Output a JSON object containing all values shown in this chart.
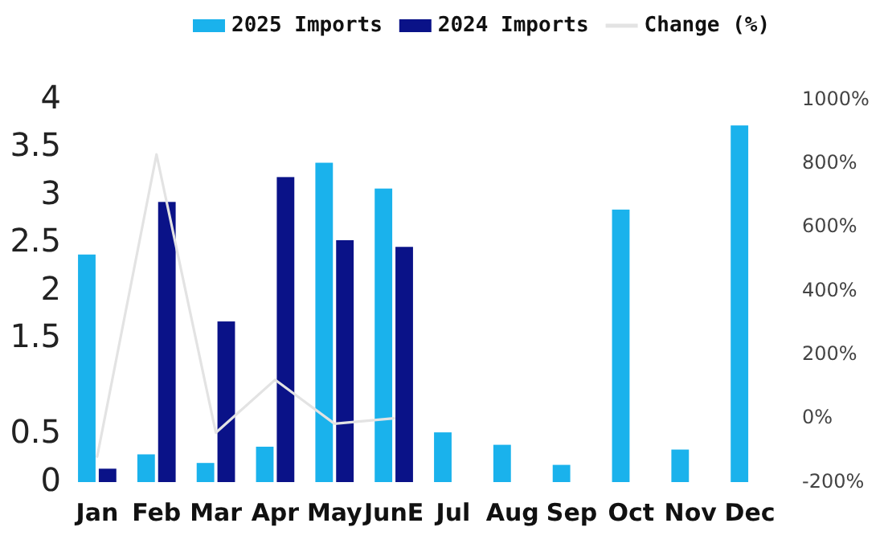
{
  "chart_data": {
    "type": "bar",
    "categories": [
      "Jan",
      "Feb",
      "Mar",
      "Apr",
      "May",
      "JunE",
      "Jul",
      "Aug",
      "Sep",
      "Oct",
      "Nov",
      "Dec"
    ],
    "series": [
      {
        "name": "2025 Imports",
        "color": "#1ab2ec",
        "values": [
          2.38,
          0.29,
          0.2,
          0.37,
          3.34,
          3.07,
          0.52,
          0.39,
          0.18,
          2.85,
          0.34,
          3.73
        ]
      },
      {
        "name": "2024 Imports",
        "color": "#0a1288",
        "values": [
          0.14,
          2.93,
          1.68,
          3.19,
          2.53,
          2.46,
          null,
          null,
          null,
          null,
          null,
          null
        ]
      },
      {
        "name": "Change (%)",
        "type": "line",
        "axis": "y2",
        "color": "#e3e3e3",
        "values": [
          -120,
          828,
          -45,
          121,
          -17,
          0,
          null,
          null,
          null,
          null,
          null,
          null
        ]
      }
    ],
    "ylim": [
      0,
      4
    ],
    "yticks": [
      0,
      0.5,
      1.5,
      2,
      2.5,
      3,
      3.5,
      4
    ],
    "y2lim": [
      -200,
      1000
    ],
    "y2ticks": [
      {
        "value": -200,
        "label": "-200%"
      },
      {
        "value": 0,
        "label": "0%"
      },
      {
        "value": 200,
        "label": "200%"
      },
      {
        "value": 400,
        "label": "400%"
      },
      {
        "value": 600,
        "label": "600%"
      },
      {
        "value": 800,
        "label": "800%"
      },
      {
        "value": 1000,
        "label": "1000%"
      }
    ],
    "legend": "top",
    "grid": false,
    "marker": "none",
    "line_style": "solid"
  }
}
